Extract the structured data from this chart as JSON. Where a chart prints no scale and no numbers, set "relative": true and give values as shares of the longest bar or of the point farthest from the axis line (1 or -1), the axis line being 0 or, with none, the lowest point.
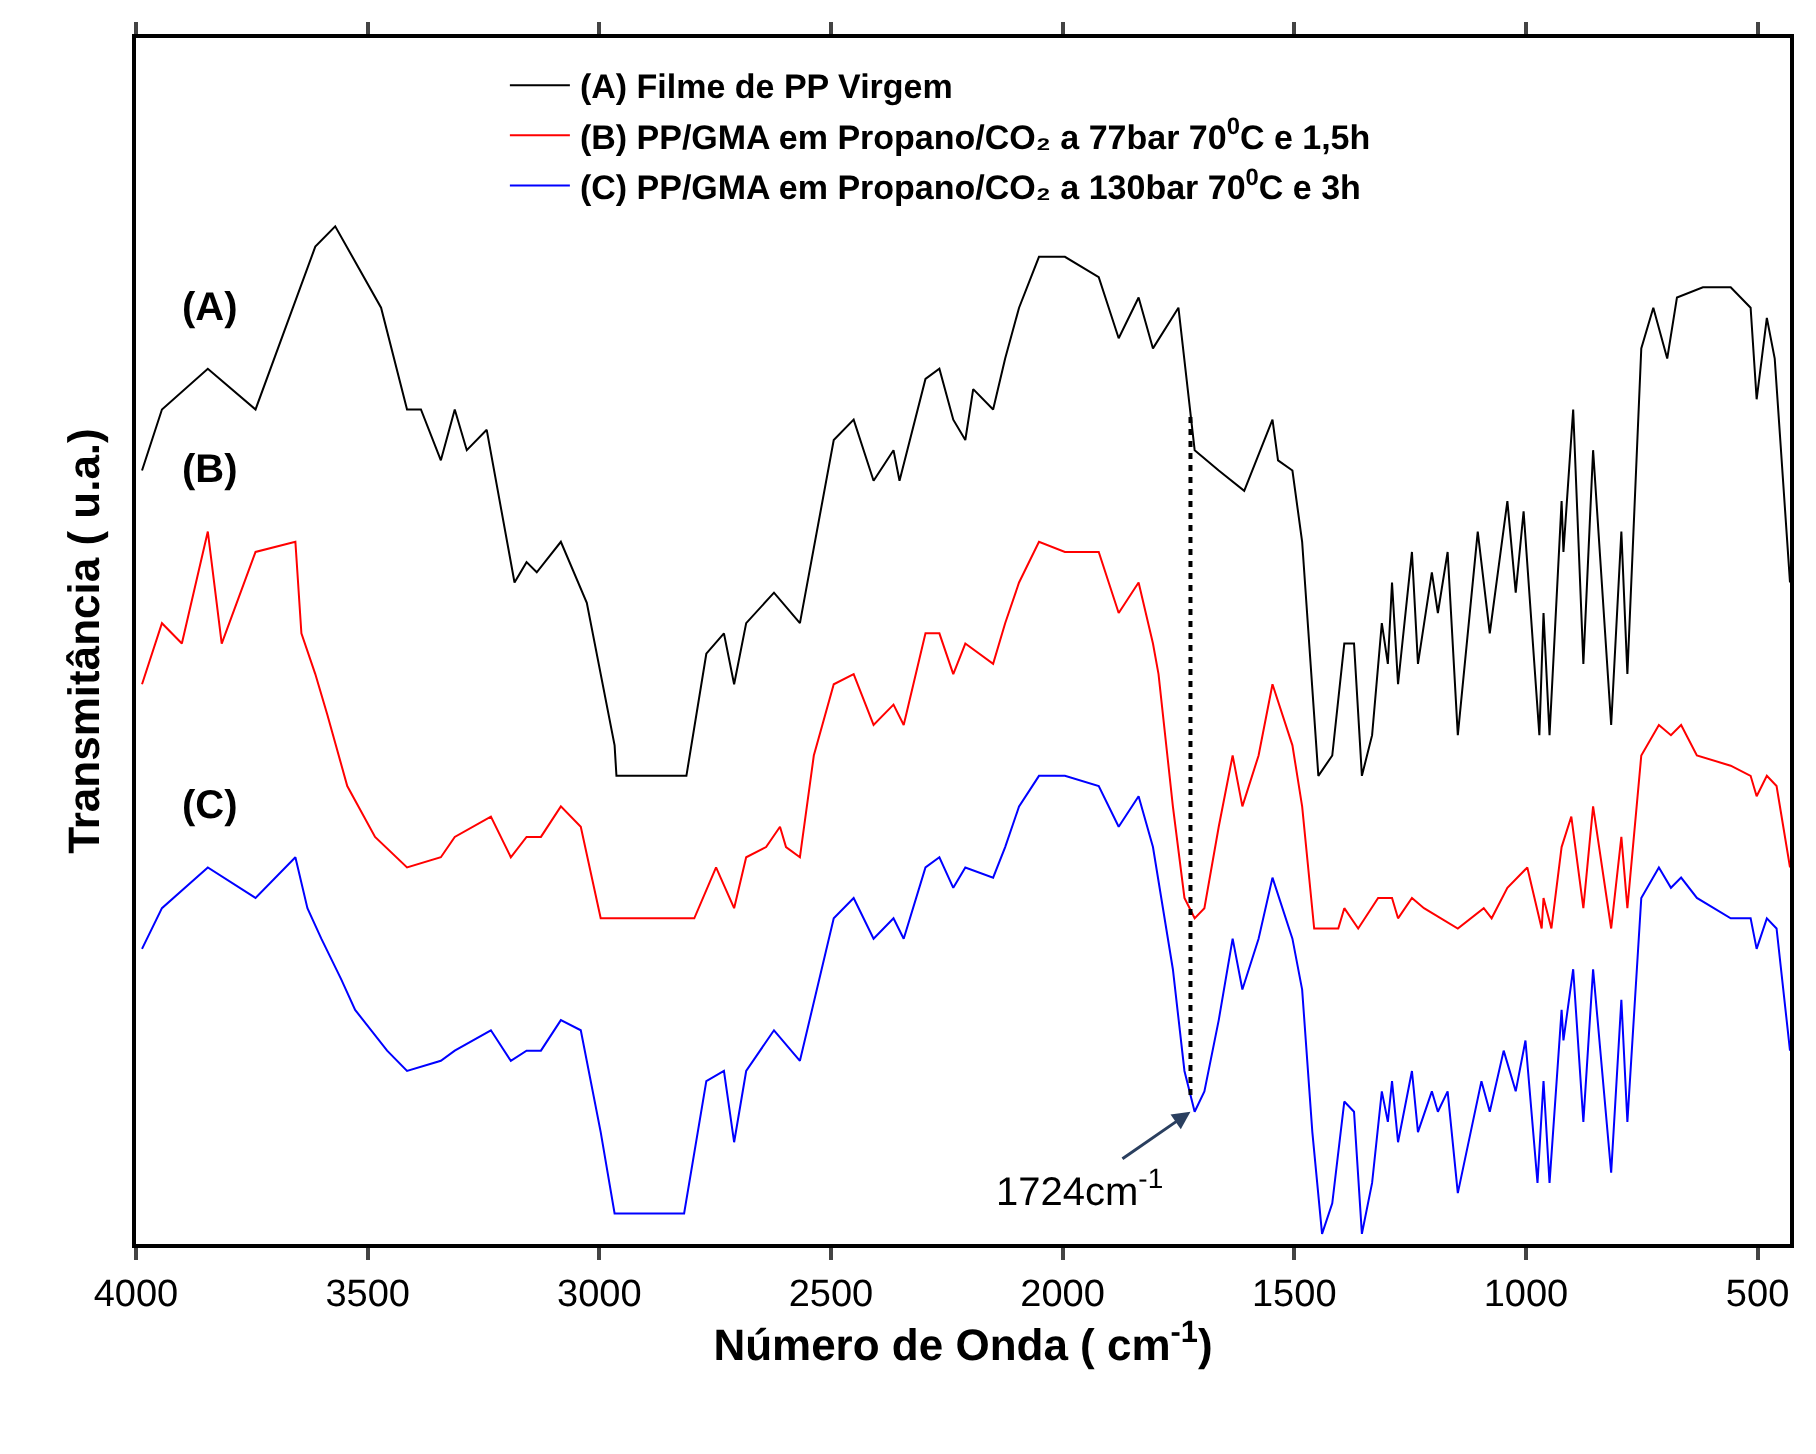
{
  "chart_data": {
    "type": "line",
    "relative": true,
    "xlabel": "Número de Onda ( cm$^{-1}$)",
    "ylabel": "Transmitância ( u.a.)",
    "xlim": [
      4000,
      430
    ],
    "xticks": [
      4000,
      3500,
      3000,
      2500,
      2000,
      1500,
      1000,
      500
    ],
    "tick_labels": "x",
    "legend": "top",
    "marker": "none",
    "line_style": "solid",
    "series": [
      {
        "name": "(A) Filme de PP Virgem",
        "color": "#000000",
        "x": [
          3987,
          3944,
          3845,
          3742,
          3613,
          3570,
          3471,
          3415,
          3385,
          3342,
          3312,
          3286,
          3243,
          3183,
          3157,
          3135,
          3083,
          3027,
          2967,
          2963,
          2812,
          2769,
          2731,
          2709,
          2683,
          2623,
          2567,
          2494,
          2451,
          2408,
          2365,
          2352,
          2296,
          2266,
          2236,
          2210,
          2193,
          2150,
          2124,
          2094,
          2051,
          1995,
          1922,
          1879,
          1836,
          1805,
          1750,
          1715,
          1663,
          1608,
          1547,
          1535,
          1504,
          1483,
          1448,
          1418,
          1392,
          1371,
          1354,
          1332,
          1311,
          1298,
          1289,
          1276,
          1246,
          1233,
          1203,
          1190,
          1169,
          1147,
          1104,
          1078,
          1040,
          1022,
          1005,
          971,
          962,
          949,
          923,
          919,
          898,
          876,
          855,
          816,
          794,
          781,
          751,
          725,
          695,
          674,
          618,
          558,
          515,
          502,
          480,
          463,
          430
        ],
        "values": [
          0.76,
          0.82,
          0.86,
          0.82,
          0.98,
          1.0,
          0.92,
          0.82,
          0.82,
          0.77,
          0.82,
          0.78,
          0.8,
          0.65,
          0.67,
          0.66,
          0.69,
          0.63,
          0.49,
          0.46,
          0.46,
          0.58,
          0.6,
          0.55,
          0.61,
          0.64,
          0.61,
          0.79,
          0.81,
          0.75,
          0.78,
          0.75,
          0.85,
          0.86,
          0.81,
          0.79,
          0.84,
          0.82,
          0.87,
          0.92,
          0.97,
          0.97,
          0.95,
          0.89,
          0.93,
          0.88,
          0.92,
          0.78,
          0.76,
          0.74,
          0.81,
          0.77,
          0.76,
          0.69,
          0.46,
          0.48,
          0.59,
          0.59,
          0.46,
          0.5,
          0.61,
          0.57,
          0.65,
          0.55,
          0.68,
          0.57,
          0.66,
          0.62,
          0.68,
          0.5,
          0.7,
          0.6,
          0.73,
          0.64,
          0.72,
          0.5,
          0.62,
          0.5,
          0.73,
          0.68,
          0.82,
          0.57,
          0.78,
          0.51,
          0.7,
          0.56,
          0.88,
          0.92,
          0.87,
          0.93,
          0.94,
          0.94,
          0.92,
          0.83,
          0.91,
          0.87,
          0.65
        ]
      },
      {
        "name": "(B) PP/GMA em Propano/CO₂ a 77bar 70$^{0}$C e 1,5h",
        "color": "#ff0000",
        "x": [
          3987,
          3944,
          3901,
          3845,
          3815,
          3742,
          3656,
          3643,
          3613,
          3587,
          3544,
          3484,
          3415,
          3342,
          3312,
          3234,
          3191,
          3157,
          3126,
          3083,
          3040,
          2997,
          2795,
          2748,
          2709,
          2683,
          2640,
          2610,
          2597,
          2567,
          2537,
          2494,
          2451,
          2408,
          2365,
          2343,
          2296,
          2266,
          2236,
          2210,
          2150,
          2124,
          2094,
          2051,
          1995,
          1922,
          1879,
          1836,
          1805,
          1793,
          1762,
          1737,
          1715,
          1694,
          1663,
          1633,
          1612,
          1577,
          1547,
          1504,
          1483,
          1457,
          1405,
          1392,
          1362,
          1319,
          1289,
          1276,
          1246,
          1220,
          1147,
          1091,
          1074,
          1040,
          997,
          966,
          962,
          945,
          923,
          902,
          876,
          855,
          816,
          794,
          781,
          751,
          713,
          687,
          665,
          631,
          558,
          515,
          502,
          480,
          459,
          430
        ],
        "values": [
          0.55,
          0.61,
          0.59,
          0.7,
          0.59,
          0.68,
          0.69,
          0.6,
          0.56,
          0.52,
          0.45,
          0.4,
          0.37,
          0.38,
          0.4,
          0.42,
          0.38,
          0.4,
          0.4,
          0.43,
          0.41,
          0.32,
          0.32,
          0.37,
          0.33,
          0.38,
          0.39,
          0.41,
          0.39,
          0.38,
          0.48,
          0.55,
          0.56,
          0.51,
          0.53,
          0.51,
          0.6,
          0.6,
          0.56,
          0.59,
          0.57,
          0.61,
          0.65,
          0.69,
          0.68,
          0.68,
          0.62,
          0.65,
          0.59,
          0.56,
          0.43,
          0.34,
          0.32,
          0.33,
          0.41,
          0.48,
          0.43,
          0.48,
          0.55,
          0.49,
          0.43,
          0.31,
          0.31,
          0.33,
          0.31,
          0.34,
          0.34,
          0.32,
          0.34,
          0.33,
          0.31,
          0.33,
          0.32,
          0.35,
          0.37,
          0.31,
          0.34,
          0.31,
          0.39,
          0.42,
          0.33,
          0.43,
          0.31,
          0.4,
          0.33,
          0.48,
          0.51,
          0.5,
          0.51,
          0.48,
          0.47,
          0.46,
          0.44,
          0.46,
          0.45,
          0.37
        ]
      },
      {
        "name": "(C) PP/GMA em Propano/CO₂ a 130bar 70$^{0}$C e 3h",
        "color": "#0000ff",
        "x": [
          3987,
          3944,
          3845,
          3742,
          3656,
          3630,
          3600,
          3557,
          3527,
          3458,
          3415,
          3342,
          3312,
          3234,
          3191,
          3157,
          3126,
          3083,
          3040,
          2997,
          2967,
          2817,
          2769,
          2731,
          2709,
          2683,
          2623,
          2567,
          2494,
          2451,
          2408,
          2365,
          2343,
          2296,
          2266,
          2236,
          2210,
          2150,
          2124,
          2094,
          2051,
          1995,
          1922,
          1879,
          1836,
          1805,
          1762,
          1737,
          1715,
          1694,
          1663,
          1633,
          1612,
          1577,
          1547,
          1504,
          1483,
          1461,
          1440,
          1418,
          1392,
          1371,
          1354,
          1332,
          1311,
          1298,
          1289,
          1276,
          1246,
          1233,
          1203,
          1190,
          1169,
          1147,
          1096,
          1078,
          1048,
          1022,
          1001,
          975,
          962,
          949,
          923,
          919,
          898,
          876,
          855,
          816,
          794,
          781,
          751,
          713,
          687,
          665,
          631,
          558,
          515,
          502,
          480,
          459,
          430
        ],
        "values": [
          0.29,
          0.33,
          0.37,
          0.34,
          0.38,
          0.33,
          0.3,
          0.26,
          0.23,
          0.19,
          0.17,
          0.18,
          0.19,
          0.21,
          0.18,
          0.19,
          0.19,
          0.22,
          0.21,
          0.11,
          0.03,
          0.03,
          0.16,
          0.17,
          0.1,
          0.17,
          0.21,
          0.18,
          0.32,
          0.34,
          0.3,
          0.32,
          0.3,
          0.37,
          0.38,
          0.35,
          0.37,
          0.36,
          0.39,
          0.43,
          0.46,
          0.46,
          0.45,
          0.41,
          0.44,
          0.39,
          0.27,
          0.17,
          0.13,
          0.15,
          0.22,
          0.3,
          0.25,
          0.3,
          0.36,
          0.3,
          0.25,
          0.11,
          0.01,
          0.04,
          0.14,
          0.13,
          0.01,
          0.06,
          0.15,
          0.12,
          0.16,
          0.1,
          0.17,
          0.11,
          0.15,
          0.13,
          0.15,
          0.05,
          0.16,
          0.13,
          0.19,
          0.15,
          0.2,
          0.06,
          0.16,
          0.06,
          0.23,
          0.2,
          0.27,
          0.12,
          0.27,
          0.07,
          0.24,
          0.12,
          0.34,
          0.37,
          0.35,
          0.36,
          0.34,
          0.32,
          0.32,
          0.29,
          0.32,
          0.31,
          0.19
        ]
      }
    ],
    "ref_lines": [
      {
        "axis": "x",
        "value": 1724,
        "line_style": "dotted",
        "color": "#000000"
      }
    ],
    "annotations": [
      "(A)",
      "(B)",
      "(C)",
      {
        "text": "1724cm$^{-1}$",
        "x": 1724,
        "y": 0.13
      }
    ]
  }
}
